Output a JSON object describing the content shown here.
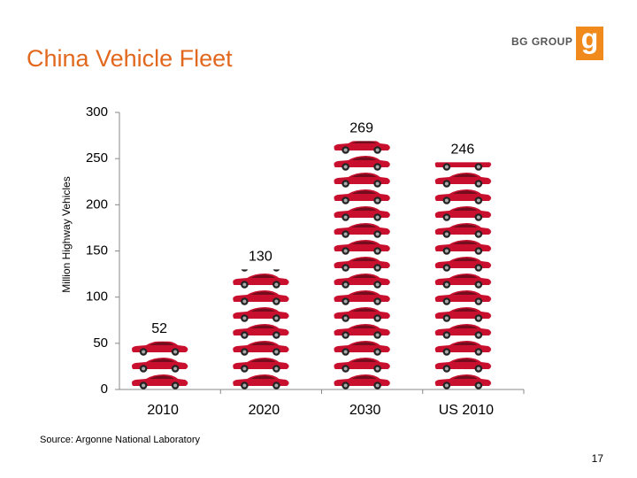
{
  "chart_data": {
    "type": "pictograph-bar",
    "title": "China Vehicle Fleet",
    "y_label": "Million Highway Vehicles",
    "categories": [
      "2010",
      "2020",
      "2030",
      "US 2010"
    ],
    "values": [
      52,
      130,
      269,
      246
    ],
    "color": "#c8102e",
    "ylim": [
      0,
      300
    ],
    "yticks": [
      0,
      50,
      100,
      150,
      200,
      250,
      300
    ]
  },
  "logo": {
    "text": "BG GROUP",
    "mark": "g"
  },
  "source": "Source: Argonne National Laboratory",
  "page_number": "17"
}
